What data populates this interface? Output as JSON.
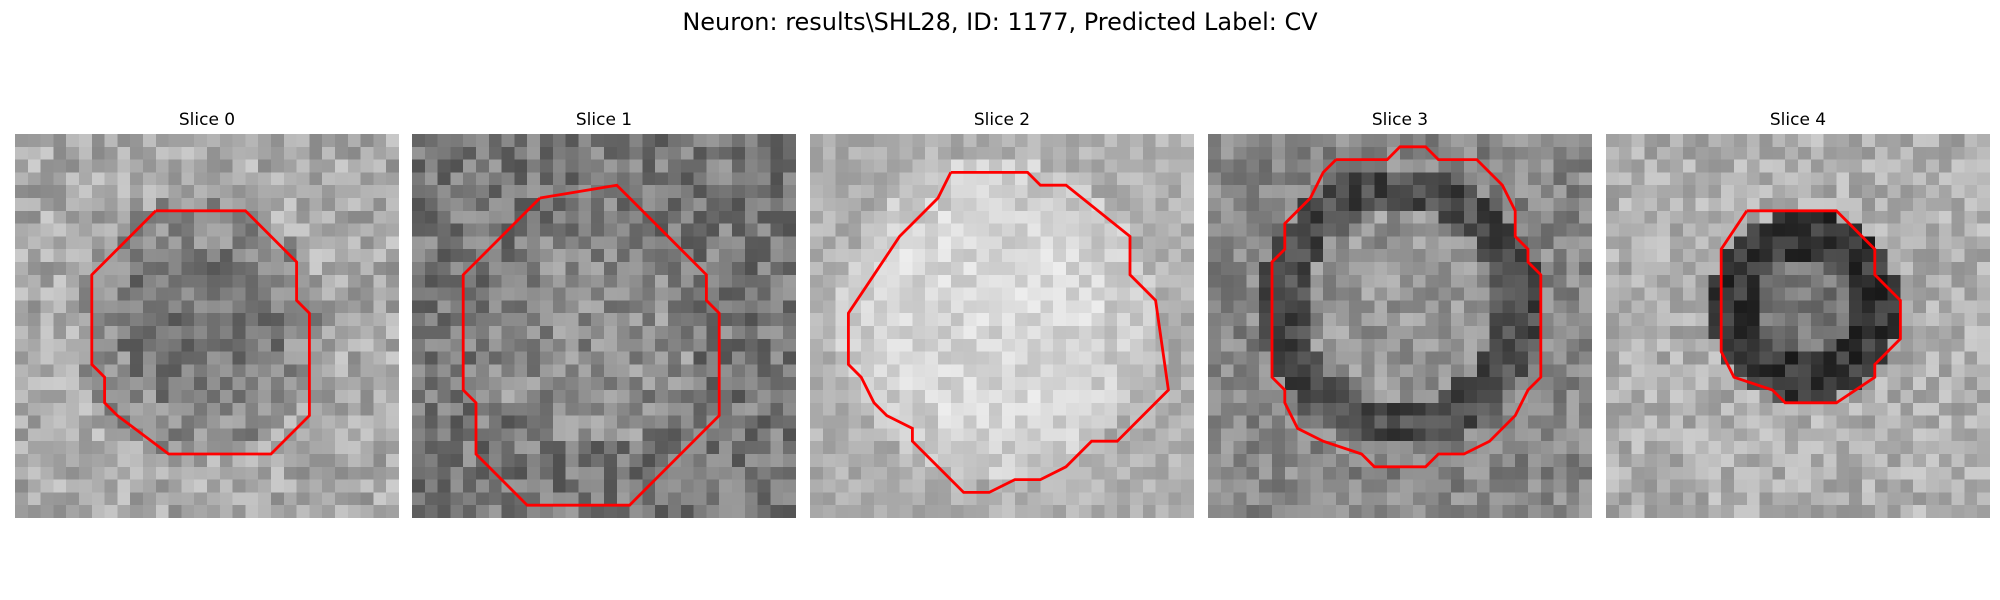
{
  "figure": {
    "title": "Neuron: results\\SHL28, ID: 1177, Predicted Label: CV"
  },
  "colors": {
    "background": "#ffffff",
    "contour": "#ff0000",
    "colormap": "grayscale"
  },
  "panels": [
    {
      "title": "Slice 0"
    },
    {
      "title": "Slice 1"
    },
    {
      "title": "Slice 2"
    },
    {
      "title": "Slice 3"
    },
    {
      "title": "Slice 4"
    }
  ]
}
